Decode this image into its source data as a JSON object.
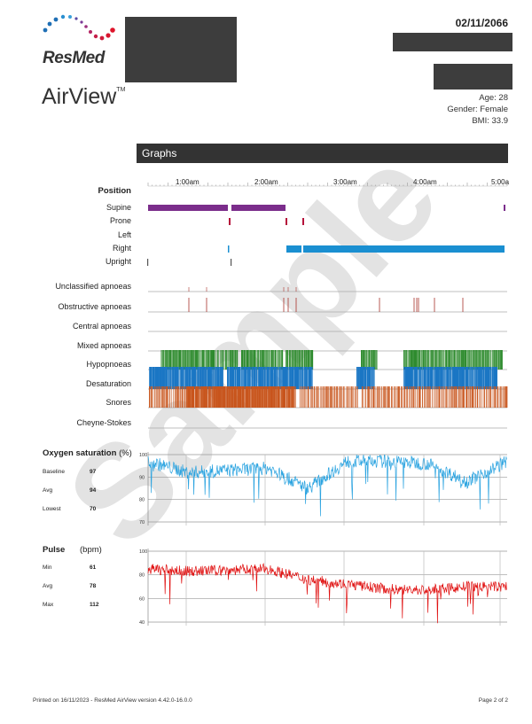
{
  "brand": {
    "name": "ResMed",
    "product": "AirView",
    "tm": "TM"
  },
  "header": {
    "date": "02/11/2066"
  },
  "patient": {
    "age": "Age: 28",
    "gender": "Gender: Female",
    "bmi": "BMI: 33.9"
  },
  "section_title": "Graphs",
  "time_axis": [
    "1:00am",
    "2:00am",
    "3:00am",
    "4:00am",
    "5:00a"
  ],
  "position": {
    "title": "Position",
    "rows": [
      "Supine",
      "Prone",
      "Left",
      "Right",
      "Upright"
    ]
  },
  "events": [
    "Unclassified apnoeas",
    "Obstructive apnoeas",
    "Central apnoeas",
    "Mixed apnoeas",
    "Hypopnoeas",
    "Desaturation",
    "Snores",
    "Cheyne-Stokes"
  ],
  "oxygen": {
    "title": "Oxygen saturation",
    "unit": "(%)",
    "stats": [
      {
        "label": "Baseline",
        "value": "97"
      },
      {
        "label": "Avg",
        "value": "94"
      },
      {
        "label": "Lowest",
        "value": "70"
      }
    ],
    "ticks": [
      "100",
      "90",
      "80",
      "70"
    ]
  },
  "pulse": {
    "title": "Pulse",
    "unit": "(bpm)",
    "stats": [
      {
        "label": "Min",
        "value": "61"
      },
      {
        "label": "Avg",
        "value": "78"
      },
      {
        "label": "Max",
        "value": "112"
      }
    ],
    "ticks": [
      "100",
      "80",
      "60",
      "40"
    ]
  },
  "watermark": "Sample",
  "footer": {
    "printed": "Printed on 16/11/2023 - ResMed AirView version 4.42.0-16.0.0",
    "page": "Page 2 of 2"
  },
  "colors": {
    "supine": "#7b2d8b",
    "prone": "#b5123a",
    "right": "#1a8fd1",
    "hypopnoea": "#2e8b2e",
    "desat": "#1a76c4",
    "snore": "#c8551c",
    "spo2": "#2aa3e0",
    "pulse": "#e01010"
  },
  "chart_data": [
    {
      "type": "line",
      "title": "Oxygen saturation (%)",
      "x_unit": "hours since 0:30am",
      "x": [
        0,
        0.5,
        1,
        1.5,
        2,
        2.5,
        3,
        3.5,
        4,
        4.5
      ],
      "series": [
        {
          "name": "SpO2",
          "values": [
            97,
            92,
            93,
            94,
            85,
            97,
            97,
            96,
            88,
            97
          ]
        }
      ],
      "ylim": [
        70,
        100
      ],
      "yticks": [
        100,
        90,
        80,
        70
      ]
    },
    {
      "type": "line",
      "title": "Pulse (bpm)",
      "x_unit": "hours since 0:30am",
      "x": [
        0,
        0.5,
        1,
        1.5,
        2,
        2.5,
        3,
        3.5,
        4,
        4.5
      ],
      "series": [
        {
          "name": "Pulse",
          "values": [
            85,
            83,
            84,
            85,
            76,
            72,
            68,
            67,
            70,
            70
          ]
        }
      ],
      "ylim": [
        40,
        100
      ],
      "yticks": [
        100,
        80,
        60,
        40
      ]
    }
  ]
}
